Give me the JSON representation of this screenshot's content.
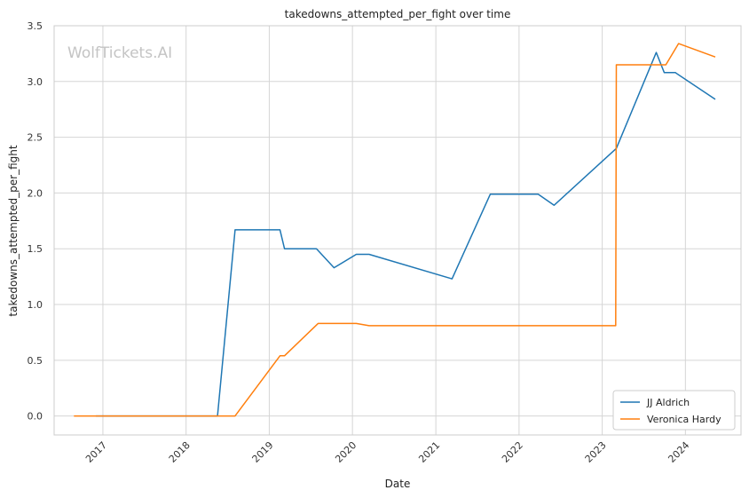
{
  "watermark": "WolfTickets.AI",
  "chart_data": {
    "type": "line",
    "title": "takedowns_attempted_per_fight over time",
    "xlabel": "Date",
    "ylabel": "takedowns_attempted_per_fight",
    "xlim": [
      "2016-06-01",
      "2024-09-01"
    ],
    "ylim": [
      -0.17,
      3.5
    ],
    "x_ticks": [
      "2017",
      "2018",
      "2019",
      "2020",
      "2021",
      "2022",
      "2023",
      "2024"
    ],
    "y_ticks": [
      "0.0",
      "0.5",
      "1.0",
      "1.5",
      "2.0",
      "2.5",
      "3.0",
      "3.5"
    ],
    "grid": true,
    "legend_position": "bottom-right",
    "series": [
      {
        "name": "JJ Aldrich",
        "color": "#1f77b4",
        "points": [
          [
            "2016-12-01",
            0.0
          ],
          [
            "2018-05-19",
            0.0
          ],
          [
            "2018-08-04",
            1.67
          ],
          [
            "2019-02-17",
            1.67
          ],
          [
            "2019-03-09",
            1.5
          ],
          [
            "2019-07-27",
            1.5
          ],
          [
            "2019-10-12",
            1.33
          ],
          [
            "2020-01-18",
            1.45
          ],
          [
            "2020-03-14",
            1.45
          ],
          [
            "2021-03-13",
            1.23
          ],
          [
            "2021-08-28",
            1.99
          ],
          [
            "2022-03-26",
            1.99
          ],
          [
            "2022-06-04",
            1.89
          ],
          [
            "2023-03-04",
            2.4
          ],
          [
            "2023-08-26",
            3.26
          ],
          [
            "2023-09-30",
            3.08
          ],
          [
            "2023-11-18",
            3.08
          ],
          [
            "2024-05-11",
            2.84
          ]
        ]
      },
      {
        "name": "Veronica Hardy",
        "color": "#ff7f0e",
        "points": [
          [
            "2016-08-27",
            0.0
          ],
          [
            "2018-08-04",
            0.0
          ],
          [
            "2019-02-17",
            0.54
          ],
          [
            "2019-03-09",
            0.54
          ],
          [
            "2019-08-03",
            0.83
          ],
          [
            "2020-01-18",
            0.83
          ],
          [
            "2020-03-14",
            0.81
          ],
          [
            "2023-03-01",
            0.81
          ],
          [
            "2023-03-04",
            3.15
          ],
          [
            "2023-10-07",
            3.15
          ],
          [
            "2023-12-02",
            3.34
          ],
          [
            "2024-05-11",
            3.22
          ]
        ]
      }
    ]
  }
}
